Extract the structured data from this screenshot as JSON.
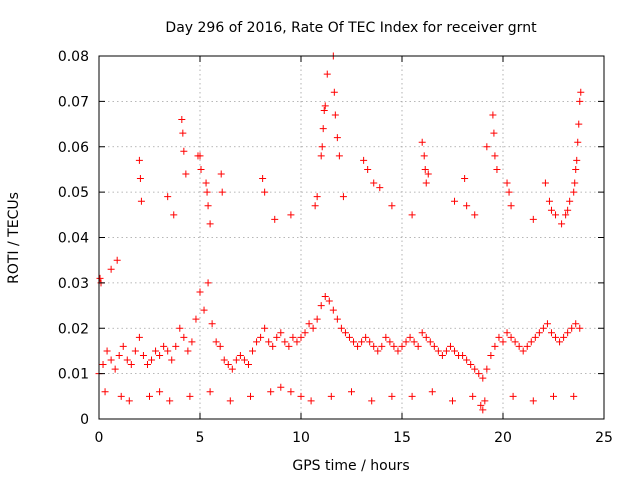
{
  "chart_data": {
    "type": "scatter",
    "title": "Day 296 of 2016, Rate Of TEC Index for receiver grnt",
    "xlabel": "GPS time / hours",
    "ylabel": "ROTI / TECUs",
    "xlim": [
      0,
      25
    ],
    "ylim": [
      0,
      0.08
    ],
    "x_ticks": [
      0,
      5,
      10,
      15,
      20,
      25
    ],
    "x_tick_labels": [
      "0",
      "5",
      "10",
      "15",
      "20",
      "25"
    ],
    "y_ticks": [
      0,
      0.01,
      0.02,
      0.03,
      0.04,
      0.05,
      0.06,
      0.07,
      0.08
    ],
    "y_tick_labels": [
      "0",
      "0.01",
      "0.02",
      "0.03",
      "0.04",
      "0.05",
      "0.06",
      "0.07",
      "0.08"
    ],
    "grid": true,
    "marker": "plus",
    "series": [
      {
        "name": "ROTI",
        "color": "#ff0000",
        "x": [
          0.0,
          0.2,
          0.4,
          0.6,
          0.8,
          1.0,
          1.2,
          1.4,
          1.6,
          1.8,
          2.0,
          2.2,
          2.4,
          2.6,
          2.8,
          3.0,
          3.2,
          3.4,
          3.6,
          3.8,
          4.0,
          4.2,
          4.4,
          4.6,
          4.8,
          5.0,
          5.2,
          5.4,
          5.6,
          5.8,
          6.0,
          6.2,
          6.4,
          6.6,
          6.8,
          7.0,
          7.2,
          7.4,
          7.6,
          7.8,
          8.0,
          8.2,
          8.4,
          8.6,
          8.8,
          9.0,
          9.2,
          9.4,
          9.6,
          9.8,
          10.0,
          10.2,
          10.4,
          10.6,
          10.8,
          11.0,
          11.2,
          11.4,
          11.6,
          11.8,
          12.0,
          12.2,
          12.4,
          12.6,
          12.8,
          13.0,
          13.2,
          13.4,
          13.6,
          13.8,
          14.0,
          14.2,
          14.4,
          14.6,
          14.8,
          15.0,
          15.2,
          15.4,
          15.6,
          15.8,
          16.0,
          16.2,
          16.4,
          16.6,
          16.8,
          17.0,
          17.2,
          17.4,
          17.6,
          17.8,
          18.0,
          18.2,
          18.4,
          18.6,
          18.8,
          19.0,
          19.2,
          19.4,
          19.6,
          19.8,
          20.0,
          20.2,
          20.4,
          20.6,
          20.8,
          21.0,
          21.2,
          21.4,
          21.6,
          21.8,
          22.0,
          22.2,
          22.4,
          22.6,
          22.8,
          23.0,
          23.2,
          23.4,
          23.6,
          23.8,
          0.05,
          0.1,
          0.6,
          0.9,
          2.0,
          2.05,
          2.1,
          3.4,
          3.7,
          4.1,
          4.15,
          4.2,
          4.3,
          4.9,
          5.0,
          5.05,
          5.3,
          5.35,
          5.4,
          5.5,
          6.05,
          6.1,
          8.1,
          8.2,
          8.7,
          9.5,
          10.7,
          10.8,
          11.0,
          11.05,
          11.1,
          11.15,
          11.2,
          11.3,
          11.6,
          11.65,
          11.7,
          11.8,
          11.9,
          12.1,
          13.1,
          13.3,
          13.6,
          13.9,
          14.5,
          15.5,
          16.0,
          16.1,
          16.15,
          16.2,
          16.3,
          17.6,
          18.1,
          18.2,
          18.6,
          19.2,
          19.5,
          19.55,
          19.6,
          19.7,
          20.2,
          20.3,
          20.4,
          21.5,
          22.1,
          22.3,
          22.4,
          22.6,
          22.9,
          23.1,
          23.2,
          23.3,
          23.5,
          23.55,
          23.6,
          23.65,
          23.7,
          23.75,
          23.8,
          23.85,
          0.3,
          1.1,
          1.5,
          2.5,
          3.0,
          3.5,
          4.5,
          5.5,
          6.5,
          7.5,
          8.5,
          9.0,
          9.5,
          10.0,
          10.5,
          11.5,
          12.5,
          13.5,
          14.5,
          15.5,
          16.5,
          17.5,
          18.5,
          18.9,
          19.0,
          19.1,
          20.5,
          21.5,
          22.5,
          23.5
        ],
        "y": [
          0.01,
          0.012,
          0.015,
          0.013,
          0.011,
          0.014,
          0.016,
          0.013,
          0.012,
          0.015,
          0.018,
          0.014,
          0.012,
          0.013,
          0.015,
          0.014,
          0.016,
          0.015,
          0.013,
          0.016,
          0.02,
          0.018,
          0.015,
          0.017,
          0.022,
          0.028,
          0.024,
          0.03,
          0.021,
          0.017,
          0.016,
          0.013,
          0.012,
          0.011,
          0.013,
          0.014,
          0.013,
          0.012,
          0.015,
          0.017,
          0.018,
          0.02,
          0.017,
          0.016,
          0.018,
          0.019,
          0.017,
          0.016,
          0.018,
          0.017,
          0.018,
          0.019,
          0.021,
          0.02,
          0.022,
          0.025,
          0.027,
          0.026,
          0.024,
          0.022,
          0.02,
          0.019,
          0.018,
          0.017,
          0.016,
          0.017,
          0.018,
          0.017,
          0.016,
          0.015,
          0.016,
          0.018,
          0.017,
          0.016,
          0.015,
          0.016,
          0.017,
          0.018,
          0.017,
          0.016,
          0.019,
          0.018,
          0.017,
          0.016,
          0.015,
          0.014,
          0.015,
          0.016,
          0.015,
          0.014,
          0.014,
          0.013,
          0.012,
          0.011,
          0.01,
          0.009,
          0.011,
          0.014,
          0.016,
          0.018,
          0.017,
          0.019,
          0.018,
          0.017,
          0.016,
          0.015,
          0.016,
          0.017,
          0.018,
          0.019,
          0.02,
          0.021,
          0.019,
          0.018,
          0.017,
          0.018,
          0.019,
          0.02,
          0.021,
          0.02,
          0.031,
          0.03,
          0.033,
          0.035,
          0.057,
          0.053,
          0.048,
          0.049,
          0.045,
          0.066,
          0.063,
          0.059,
          0.054,
          0.058,
          0.058,
          0.055,
          0.052,
          0.05,
          0.047,
          0.043,
          0.054,
          0.05,
          0.053,
          0.05,
          0.044,
          0.045,
          0.047,
          0.049,
          0.058,
          0.06,
          0.064,
          0.068,
          0.069,
          0.076,
          0.08,
          0.072,
          0.067,
          0.062,
          0.058,
          0.049,
          0.057,
          0.055,
          0.052,
          0.051,
          0.047,
          0.045,
          0.061,
          0.058,
          0.055,
          0.052,
          0.054,
          0.048,
          0.053,
          0.047,
          0.045,
          0.06,
          0.067,
          0.063,
          0.058,
          0.055,
          0.052,
          0.05,
          0.047,
          0.044,
          0.052,
          0.048,
          0.046,
          0.045,
          0.043,
          0.045,
          0.046,
          0.048,
          0.05,
          0.052,
          0.055,
          0.057,
          0.061,
          0.065,
          0.07,
          0.072,
          0.006,
          0.005,
          0.004,
          0.005,
          0.006,
          0.004,
          0.005,
          0.006,
          0.004,
          0.005,
          0.006,
          0.007,
          0.006,
          0.005,
          0.004,
          0.005,
          0.006,
          0.004,
          0.005,
          0.005,
          0.006,
          0.004,
          0.005,
          0.003,
          0.002,
          0.004,
          0.005,
          0.004,
          0.005,
          0.005
        ]
      }
    ]
  }
}
